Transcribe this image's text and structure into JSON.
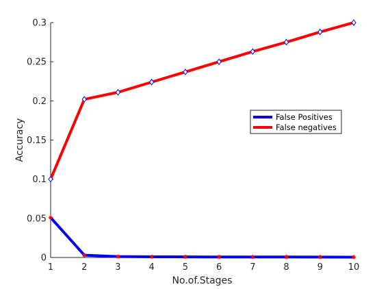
{
  "chart_data": {
    "type": "line",
    "xlabel": "No.of.Stages",
    "ylabel": "Accuracy",
    "xlim": [
      1,
      10
    ],
    "ylim": [
      0,
      0.3
    ],
    "x": [
      1,
      2,
      3,
      4,
      5,
      6,
      7,
      8,
      9,
      10
    ],
    "xticks": [
      "1",
      "2",
      "3",
      "4",
      "5",
      "6",
      "7",
      "8",
      "9",
      "10"
    ],
    "yticks": [
      "0",
      "0.05",
      "0.1",
      "0.15",
      "0.2",
      "0.25",
      "0.3"
    ],
    "ytick_values": [
      0,
      0.05,
      0.1,
      0.15,
      0.2,
      0.25,
      0.3
    ],
    "grid": false,
    "legend_position": "right-middle",
    "series": [
      {
        "name": "False Positives",
        "color": "#0000ff",
        "marker": "asterisk",
        "marker_color": "#ff0000",
        "values": [
          0.051,
          0.003,
          0.0012,
          0.0009,
          0.0008,
          0.0007,
          0.0006,
          0.0006,
          0.0005,
          0.0004
        ]
      },
      {
        "name": "False negatives",
        "color": "#ff0000",
        "marker": "diamond",
        "marker_color": "#0000ff",
        "values": [
          0.1,
          0.202,
          0.211,
          0.224,
          0.237,
          0.25,
          0.263,
          0.275,
          0.288,
          0.3
        ]
      }
    ]
  }
}
